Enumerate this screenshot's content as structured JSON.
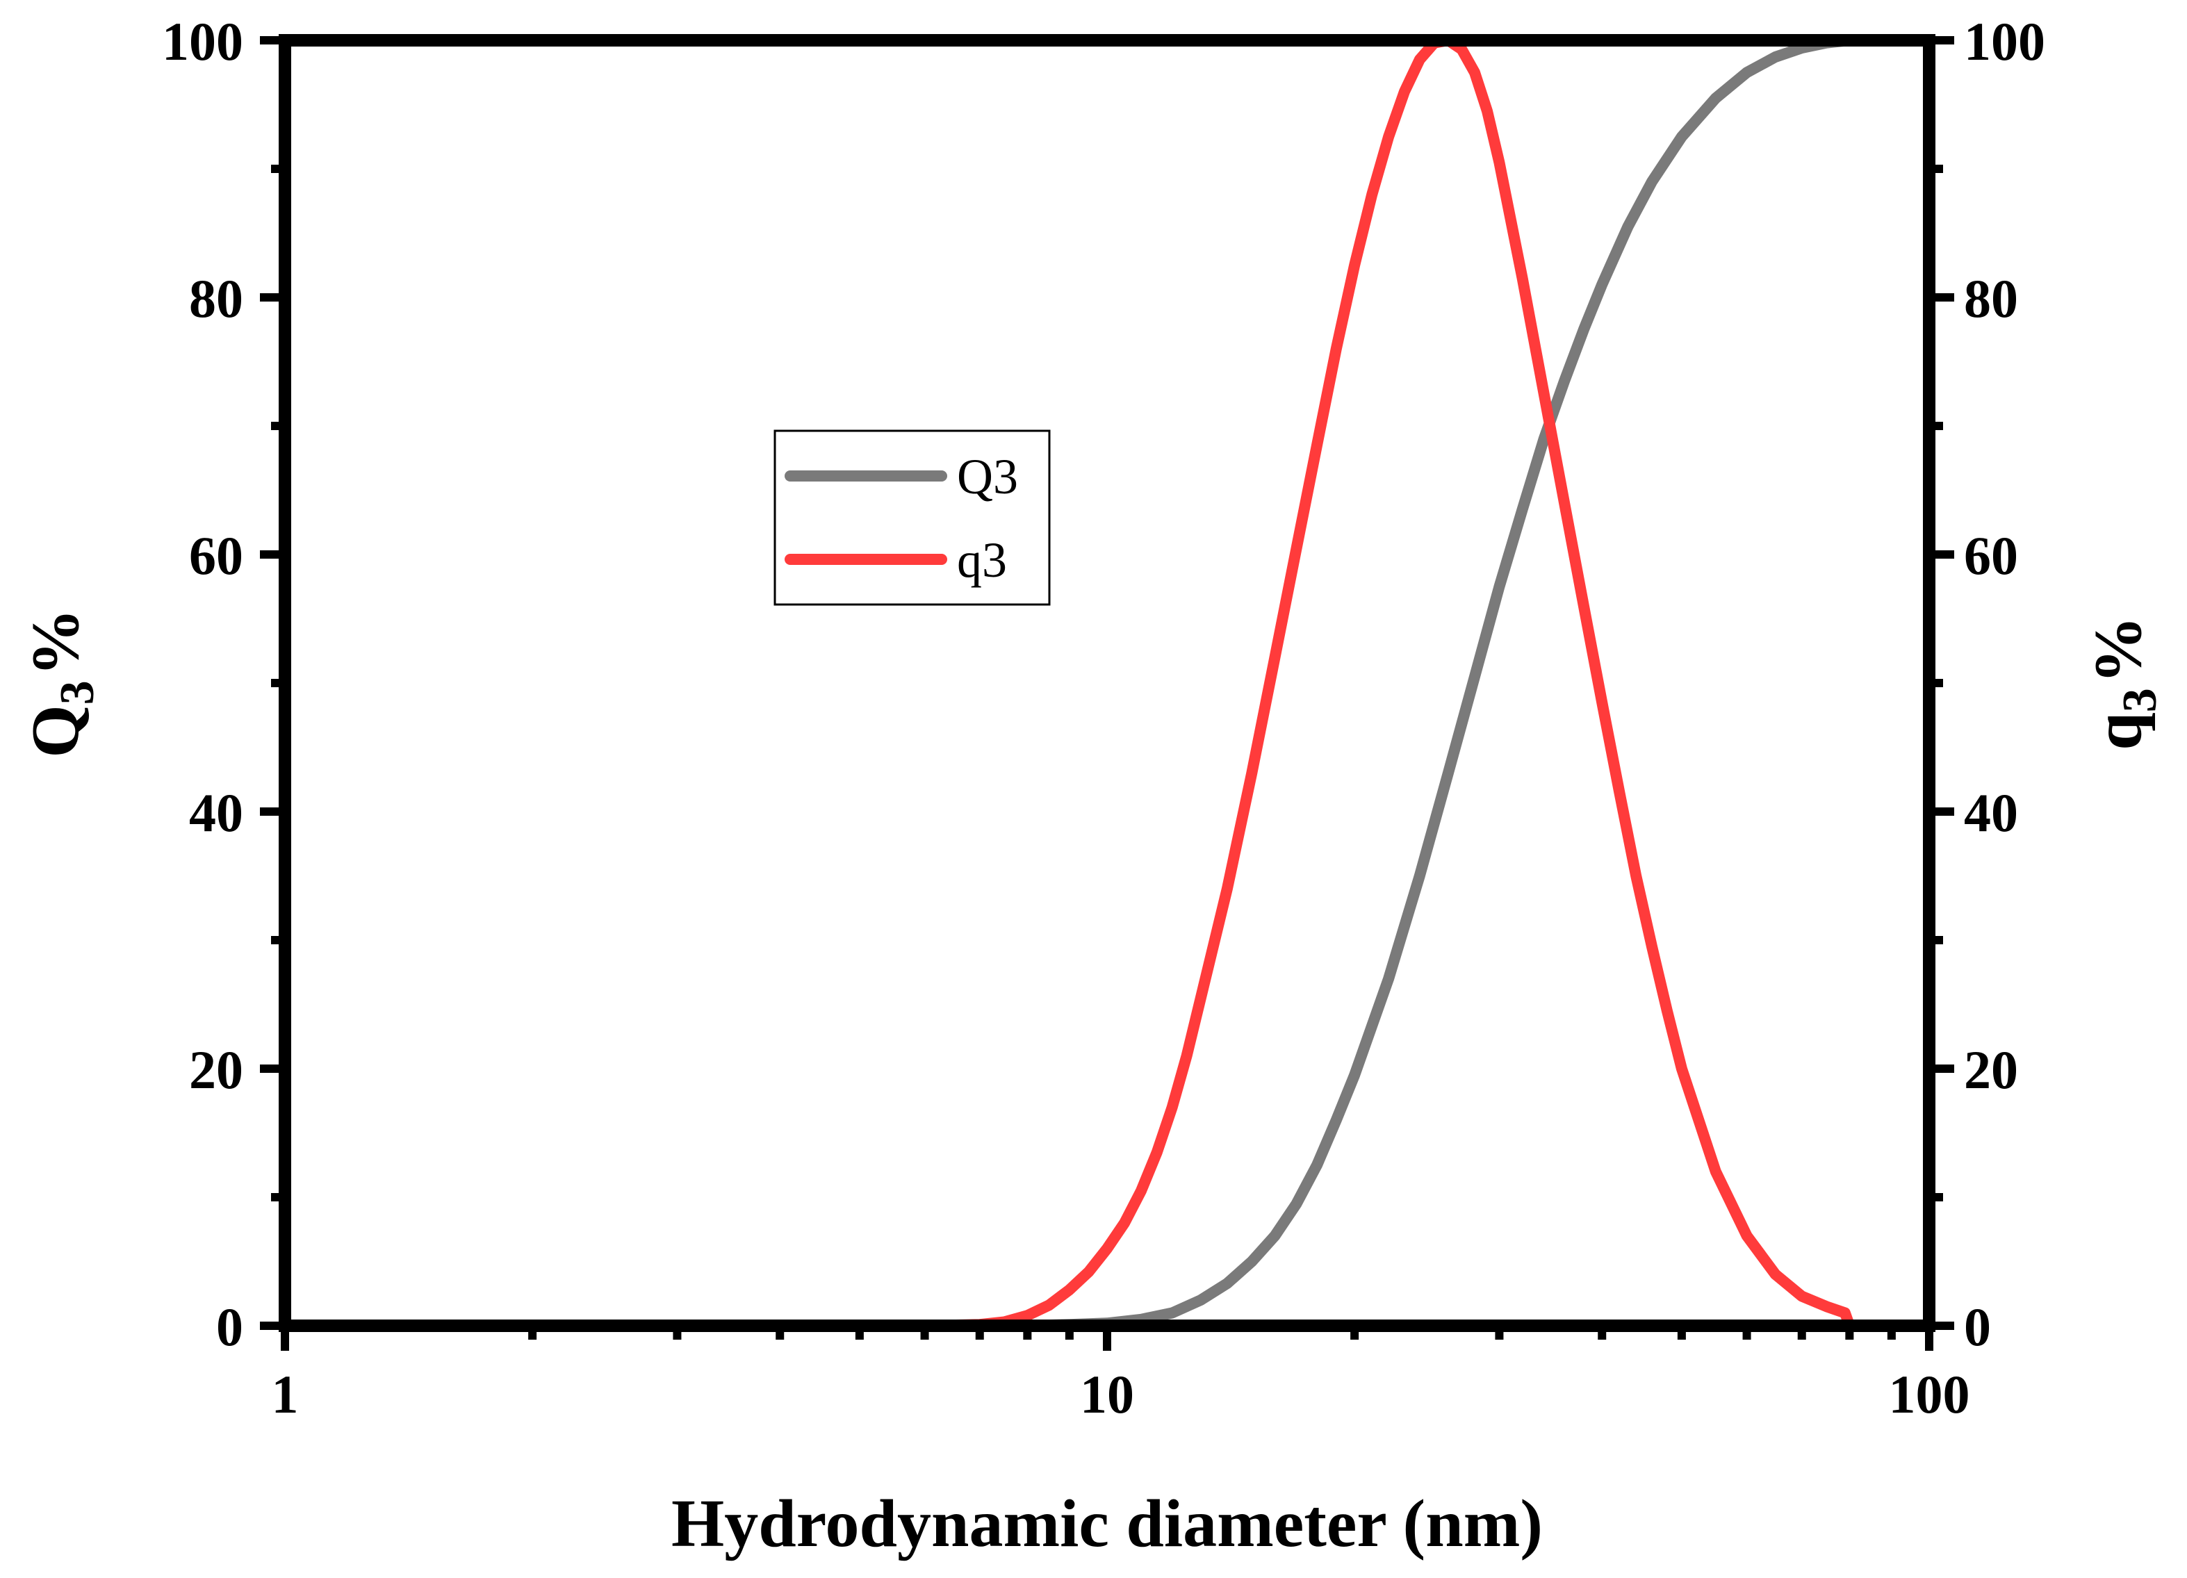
{
  "chart_data": {
    "type": "line",
    "xlabel": "Hydrodynamic diameter (nm)",
    "ylabel_left": {
      "main": "Q",
      "sub": "3",
      "unit": "%"
    },
    "ylabel_right": {
      "main": "q",
      "sub": "3",
      "unit": "%"
    },
    "xscale": "log",
    "xlim": [
      1,
      100
    ],
    "ylim_left": [
      0,
      100
    ],
    "ylim_right": [
      0,
      100
    ],
    "x_ticks": [
      1,
      10,
      100
    ],
    "x_tick_labels": [
      "1",
      "10",
      "100"
    ],
    "y_ticks_left": [
      0,
      20,
      40,
      60,
      80,
      100
    ],
    "y_tick_labels_left": [
      "0",
      "20",
      "40",
      "60",
      "80",
      "100"
    ],
    "y_ticks_right": [
      0,
      20,
      40,
      60,
      80,
      100
    ],
    "y_tick_labels_right": [
      "0",
      "20",
      "40",
      "60",
      "80",
      "100"
    ],
    "grid": false,
    "legend_position": "center-left",
    "series": [
      {
        "name": "Q3",
        "color": "#7a7a7a",
        "axis": "left",
        "x": [
          1,
          6,
          8,
          9,
          10,
          11,
          12,
          13,
          14,
          15,
          16,
          17,
          18,
          19,
          20,
          22,
          24,
          26,
          28,
          30,
          32,
          34,
          36,
          38,
          40,
          43,
          46,
          50,
          55,
          60,
          65,
          70,
          75,
          80
        ],
        "y": [
          0,
          0,
          0,
          0.1,
          0.2,
          0.5,
          1.0,
          2.0,
          3.3,
          5.0,
          7.0,
          9.5,
          12.5,
          16.0,
          19.5,
          27.0,
          35.0,
          43.0,
          50.5,
          57.5,
          63.5,
          69.0,
          73.5,
          77.5,
          81.0,
          85.5,
          89.0,
          92.5,
          95.5,
          97.5,
          98.7,
          99.4,
          99.8,
          100
        ]
      },
      {
        "name": "q3",
        "color": "#ff3b3b",
        "axis": "right",
        "x": [
          1,
          6,
          7,
          7.5,
          8,
          8.5,
          9,
          9.5,
          10,
          10.5,
          11,
          11.5,
          12,
          12.5,
          13,
          14,
          15,
          16,
          17,
          18,
          19,
          20,
          21,
          22,
          23,
          24,
          25,
          26,
          27,
          28,
          29,
          30,
          32,
          34,
          36,
          38,
          40,
          42,
          44,
          46,
          48,
          50,
          55,
          60,
          65,
          70,
          75,
          79,
          80
        ],
        "y": [
          0,
          0,
          0.1,
          0.3,
          0.8,
          1.6,
          2.8,
          4.2,
          6.0,
          8.0,
          10.5,
          13.5,
          17.0,
          21.0,
          25.5,
          34.0,
          43.0,
          52.0,
          60.5,
          68.5,
          76.0,
          82.5,
          88.0,
          92.5,
          96.0,
          98.5,
          99.8,
          100,
          99.3,
          97.5,
          94.5,
          90.5,
          81.5,
          72.5,
          64.0,
          56.0,
          48.5,
          41.5,
          35.0,
          29.5,
          24.5,
          20.0,
          12.0,
          7.0,
          4.0,
          2.3,
          1.5,
          1.0,
          0
        ]
      }
    ]
  }
}
